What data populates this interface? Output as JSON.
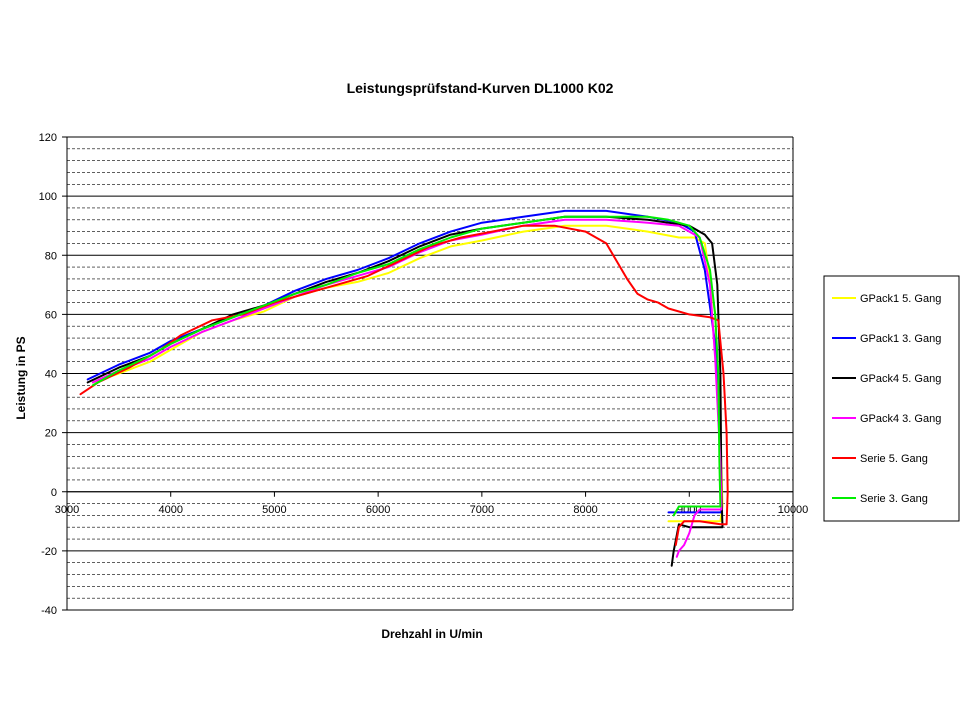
{
  "chart_data": {
    "type": "line",
    "title": "Leistungsprüfstand-Kurven DL1000 K02",
    "xlabel": "Drehzahl in U/min",
    "ylabel": "Leistung in PS",
    "xlim": [
      3000,
      10000
    ],
    "ylim": [
      -40,
      120
    ],
    "x_ticks": [
      3000,
      4000,
      5000,
      6000,
      7000,
      8000,
      9000,
      10000
    ],
    "y_ticks": [
      120,
      100,
      80,
      60,
      40,
      20,
      0,
      -20,
      -40
    ],
    "grid": "horizontal",
    "legend": "right",
    "series": [
      {
        "name": "GPack1 5. Gang",
        "color": "#ffff00",
        "points": [
          [
            3250,
            37
          ],
          [
            3500,
            40
          ],
          [
            3800,
            44
          ],
          [
            4000,
            48
          ],
          [
            4300,
            54
          ],
          [
            4600,
            58
          ],
          [
            4900,
            61
          ],
          [
            5200,
            66
          ],
          [
            5500,
            69
          ],
          [
            5800,
            71
          ],
          [
            6100,
            74
          ],
          [
            6400,
            79
          ],
          [
            6700,
            83
          ],
          [
            7000,
            85
          ],
          [
            7400,
            88
          ],
          [
            7800,
            90
          ],
          [
            8200,
            90
          ],
          [
            8600,
            88
          ],
          [
            8900,
            86
          ],
          [
            9050,
            86
          ],
          [
            9150,
            84
          ],
          [
            9250,
            60
          ],
          [
            9300,
            20
          ],
          [
            9320,
            -5
          ],
          [
            9300,
            -10
          ],
          [
            9000,
            -10
          ],
          [
            8800,
            -10
          ]
        ]
      },
      {
        "name": "GPack1 3. Gang",
        "color": "#0000ff",
        "points": [
          [
            3200,
            38
          ],
          [
            3500,
            43
          ],
          [
            3800,
            47
          ],
          [
            4000,
            51
          ],
          [
            4300,
            55
          ],
          [
            4600,
            59
          ],
          [
            4900,
            63
          ],
          [
            5200,
            68
          ],
          [
            5500,
            72
          ],
          [
            5800,
            75
          ],
          [
            6100,
            79
          ],
          [
            6400,
            84
          ],
          [
            6700,
            88
          ],
          [
            7000,
            91
          ],
          [
            7400,
            93
          ],
          [
            7800,
            95
          ],
          [
            8200,
            95
          ],
          [
            8600,
            93
          ],
          [
            8900,
            91
          ],
          [
            9050,
            88
          ],
          [
            9150,
            75
          ],
          [
            9250,
            50
          ],
          [
            9300,
            20
          ],
          [
            9310,
            -7
          ],
          [
            9000,
            -7
          ],
          [
            8800,
            -7
          ]
        ]
      },
      {
        "name": "GPack4 5. Gang",
        "color": "#000000",
        "points": [
          [
            3200,
            37
          ],
          [
            3500,
            42
          ],
          [
            3800,
            46
          ],
          [
            4000,
            50
          ],
          [
            4300,
            55
          ],
          [
            4600,
            60
          ],
          [
            4900,
            63
          ],
          [
            5200,
            67
          ],
          [
            5500,
            71
          ],
          [
            5800,
            74
          ],
          [
            6100,
            78
          ],
          [
            6400,
            83
          ],
          [
            6700,
            87
          ],
          [
            7000,
            89
          ],
          [
            7400,
            91
          ],
          [
            7800,
            93
          ],
          [
            8200,
            93
          ],
          [
            8600,
            92
          ],
          [
            9000,
            90
          ],
          [
            9150,
            87
          ],
          [
            9220,
            84
          ],
          [
            9270,
            70
          ],
          [
            9300,
            40
          ],
          [
            9310,
            0
          ],
          [
            9320,
            -12
          ],
          [
            9000,
            -12
          ],
          [
            8900,
            -11
          ],
          [
            8850,
            -20
          ],
          [
            8830,
            -25
          ]
        ]
      },
      {
        "name": "GPack4 3. Gang",
        "color": "#ff00ff",
        "points": [
          [
            3250,
            37
          ],
          [
            3500,
            41
          ],
          [
            3800,
            45
          ],
          [
            4000,
            49
          ],
          [
            4300,
            54
          ],
          [
            4600,
            58
          ],
          [
            4900,
            62
          ],
          [
            5200,
            66
          ],
          [
            5500,
            70
          ],
          [
            5800,
            73
          ],
          [
            6100,
            76
          ],
          [
            6400,
            81
          ],
          [
            6700,
            85
          ],
          [
            7000,
            87
          ],
          [
            7400,
            90
          ],
          [
            7800,
            92
          ],
          [
            8200,
            92
          ],
          [
            8600,
            91
          ],
          [
            8900,
            90
          ],
          [
            9100,
            86
          ],
          [
            9200,
            70
          ],
          [
            9250,
            45
          ],
          [
            9300,
            10
          ],
          [
            9310,
            -6
          ],
          [
            9100,
            -6
          ],
          [
            9050,
            -8
          ],
          [
            9000,
            -14
          ],
          [
            8950,
            -18
          ],
          [
            8900,
            -20
          ],
          [
            8880,
            -22
          ]
        ]
      },
      {
        "name": "Serie 5. Gang",
        "color": "#ff0000",
        "points": [
          [
            3130,
            33
          ],
          [
            3300,
            37
          ],
          [
            3600,
            42
          ],
          [
            3900,
            48
          ],
          [
            4100,
            53
          ],
          [
            4400,
            58
          ],
          [
            4700,
            60
          ],
          [
            5000,
            64
          ],
          [
            5300,
            67
          ],
          [
            5600,
            70
          ],
          [
            5900,
            73
          ],
          [
            6200,
            78
          ],
          [
            6500,
            83
          ],
          [
            6800,
            86
          ],
          [
            7100,
            88
          ],
          [
            7400,
            90
          ],
          [
            7700,
            90
          ],
          [
            8000,
            88
          ],
          [
            8200,
            84
          ],
          [
            8400,
            72
          ],
          [
            8500,
            67
          ],
          [
            8600,
            65
          ],
          [
            8700,
            64
          ],
          [
            8800,
            62
          ],
          [
            9000,
            60
          ],
          [
            9200,
            59
          ],
          [
            9280,
            58
          ],
          [
            9330,
            40
          ],
          [
            9360,
            20
          ],
          [
            9370,
            0
          ],
          [
            9360,
            -11
          ],
          [
            9300,
            -11
          ],
          [
            9100,
            -10
          ],
          [
            8950,
            -10
          ],
          [
            8900,
            -12
          ],
          [
            8870,
            -18
          ]
        ]
      },
      {
        "name": "Serie 3. Gang",
        "color": "#00ee00",
        "points": [
          [
            3250,
            36
          ],
          [
            3500,
            41
          ],
          [
            3800,
            46
          ],
          [
            4000,
            50
          ],
          [
            4300,
            55
          ],
          [
            4600,
            59
          ],
          [
            4900,
            63
          ],
          [
            5200,
            67
          ],
          [
            5500,
            70
          ],
          [
            5800,
            74
          ],
          [
            6100,
            77
          ],
          [
            6400,
            82
          ],
          [
            6700,
            86
          ],
          [
            7000,
            89
          ],
          [
            7400,
            91
          ],
          [
            7800,
            93
          ],
          [
            8200,
            93
          ],
          [
            8600,
            93
          ],
          [
            8800,
            92
          ],
          [
            9000,
            90
          ],
          [
            9100,
            86
          ],
          [
            9200,
            75
          ],
          [
            9250,
            60
          ],
          [
            9280,
            40
          ],
          [
            9290,
            10
          ],
          [
            9300,
            -5
          ],
          [
            9100,
            -5
          ],
          [
            8900,
            -5
          ],
          [
            8850,
            -8
          ]
        ]
      }
    ]
  }
}
